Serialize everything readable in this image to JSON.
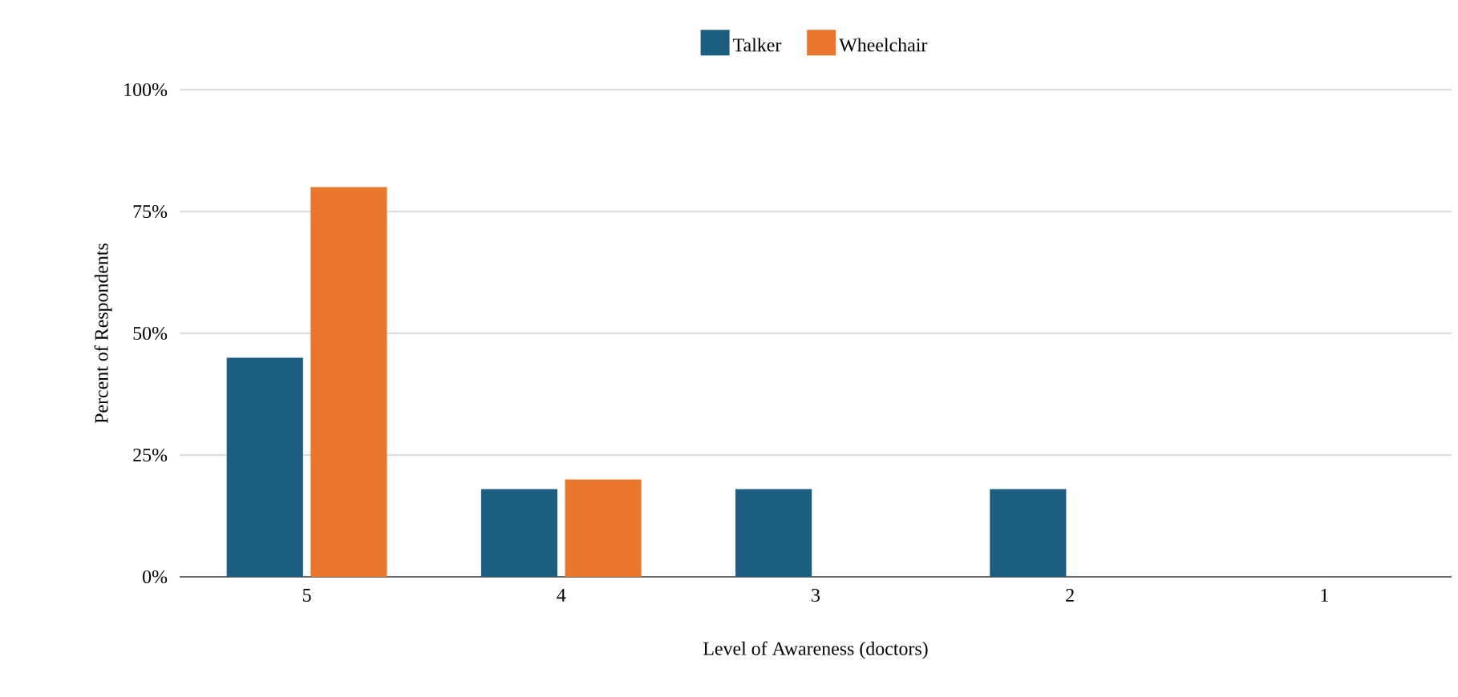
{
  "chart_data": {
    "type": "bar",
    "xlabel": "Level of Awareness (doctors)",
    "ylabel": "Percent of Respondents",
    "categories": [
      "5",
      "4",
      "3",
      "2",
      "1"
    ],
    "series": [
      {
        "name": "Talker",
        "color": "#1b5e80",
        "values": [
          45,
          18,
          18,
          18,
          0
        ]
      },
      {
        "name": "Wheelchair",
        "color": "#e8762d",
        "values": [
          80,
          20,
          0,
          0,
          0
        ]
      }
    ],
    "ylim": [
      0,
      100
    ],
    "yticks": [
      {
        "value": 0,
        "label": "0%"
      },
      {
        "value": 25,
        "label": "25%"
      },
      {
        "value": 50,
        "label": "50%"
      },
      {
        "value": 75,
        "label": "75%"
      },
      {
        "value": 100,
        "label": "100%"
      }
    ],
    "grid": "y",
    "legend": "top"
  }
}
